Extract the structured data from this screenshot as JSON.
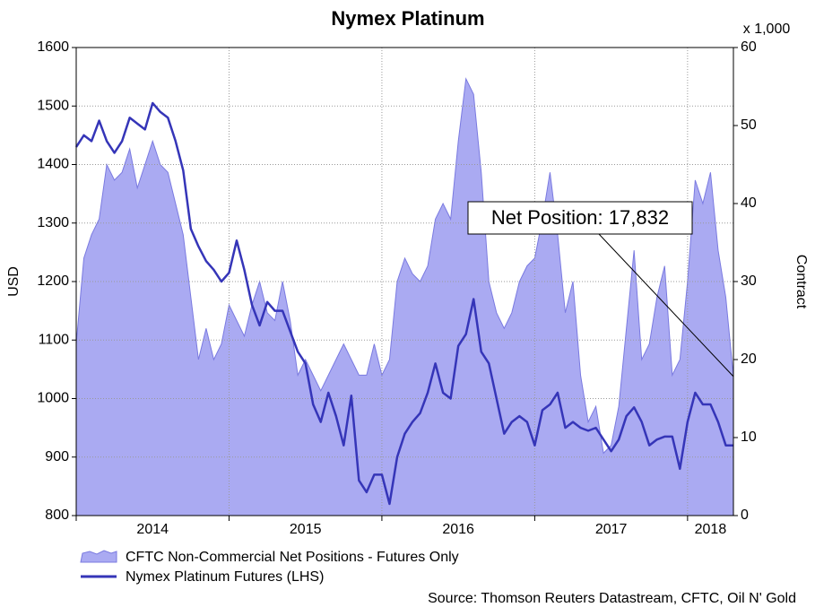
{
  "chart_data": {
    "type": "combo",
    "title": "Nymex Platinum",
    "ylabel": "USD",
    "y2label": "Contract",
    "y2_unit_label": "x 1,000",
    "source": "Source: Thomson Reuters Datastream, CFTC, Oil N' Gold",
    "annotation": "Net Position: 17,832",
    "xlim": [
      2014,
      2018.3
    ],
    "xticks": [
      2014,
      2015,
      2016,
      2017,
      2018
    ],
    "ylim": [
      800,
      1600
    ],
    "yticks": [
      800,
      900,
      1000,
      1100,
      1200,
      1300,
      1400,
      1500,
      1600
    ],
    "y2lim": [
      0,
      60
    ],
    "y2ticks": [
      0,
      10,
      20,
      30,
      40,
      50,
      60
    ],
    "grid": true,
    "legend": "bottom-left",
    "x": [
      2014,
      2014.05,
      2014.1,
      2014.15,
      2014.2,
      2014.25,
      2014.3,
      2014.35,
      2014.4,
      2014.45,
      2014.5,
      2014.55,
      2014.6,
      2014.65,
      2014.7,
      2014.75,
      2014.8,
      2014.85,
      2014.9,
      2014.95,
      2015,
      2015.05,
      2015.1,
      2015.15,
      2015.2,
      2015.25,
      2015.3,
      2015.35,
      2015.4,
      2015.45,
      2015.5,
      2015.55,
      2015.6,
      2015.65,
      2015.7,
      2015.75,
      2015.8,
      2015.85,
      2015.9,
      2015.95,
      2016,
      2016.05,
      2016.1,
      2016.15,
      2016.2,
      2016.25,
      2016.3,
      2016.35,
      2016.4,
      2016.45,
      2016.5,
      2016.55,
      2016.6,
      2016.65,
      2016.7,
      2016.75,
      2016.8,
      2016.85,
      2016.9,
      2016.95,
      2017,
      2017.05,
      2017.1,
      2017.15,
      2017.2,
      2017.25,
      2017.3,
      2017.35,
      2017.4,
      2017.45,
      2017.5,
      2017.55,
      2017.6,
      2017.65,
      2017.7,
      2017.75,
      2017.8,
      2017.85,
      2017.9,
      2017.95,
      2018,
      2018.05,
      2018.1,
      2018.15,
      2018.2,
      2018.25,
      2018.3
    ],
    "series": [
      {
        "name": "CFTC Non-Commercial Net Positions - Futures Only",
        "type": "area",
        "axis": "y2",
        "color": "#aaaaf2",
        "edge": "#7a7ae0",
        "values": [
          22,
          33,
          36,
          38,
          45,
          43,
          44,
          47,
          42,
          45,
          48,
          45,
          44,
          40,
          36,
          28,
          20,
          24,
          20,
          22,
          27,
          25,
          23,
          27,
          30,
          26,
          25,
          30,
          25,
          18,
          20,
          18,
          16,
          18,
          20,
          22,
          20,
          18,
          18,
          22,
          18,
          20,
          30,
          33,
          31,
          30,
          32,
          38,
          40,
          38,
          48,
          56,
          54,
          44,
          30,
          26,
          24,
          26,
          30,
          32,
          33,
          38,
          44,
          36,
          26,
          30,
          18,
          12,
          14,
          8,
          9,
          14,
          24,
          34,
          20,
          22,
          28,
          32,
          18,
          20,
          30,
          43,
          40,
          44,
          34,
          28,
          17.832
        ]
      },
      {
        "name": "Nymex Platinum Futures (LHS)",
        "type": "line",
        "axis": "y",
        "color": "#3535b8",
        "values": [
          1430,
          1450,
          1440,
          1475,
          1440,
          1420,
          1440,
          1480,
          1470,
          1460,
          1505,
          1490,
          1480,
          1440,
          1390,
          1290,
          1260,
          1235,
          1220,
          1200,
          1215,
          1270,
          1220,
          1160,
          1125,
          1165,
          1150,
          1150,
          1115,
          1080,
          1060,
          990,
          960,
          1010,
          970,
          920,
          1005,
          860,
          840,
          870,
          870,
          820,
          900,
          940,
          960,
          975,
          1010,
          1060,
          1010,
          1000,
          1090,
          1110,
          1170,
          1080,
          1060,
          1000,
          940,
          960,
          970,
          960,
          920,
          980,
          990,
          1010,
          950,
          960,
          950,
          945,
          950,
          930,
          910,
          930,
          970,
          985,
          960,
          920,
          930,
          935,
          935,
          880,
          960,
          1010,
          990,
          990,
          960,
          920,
          920
        ]
      }
    ]
  }
}
